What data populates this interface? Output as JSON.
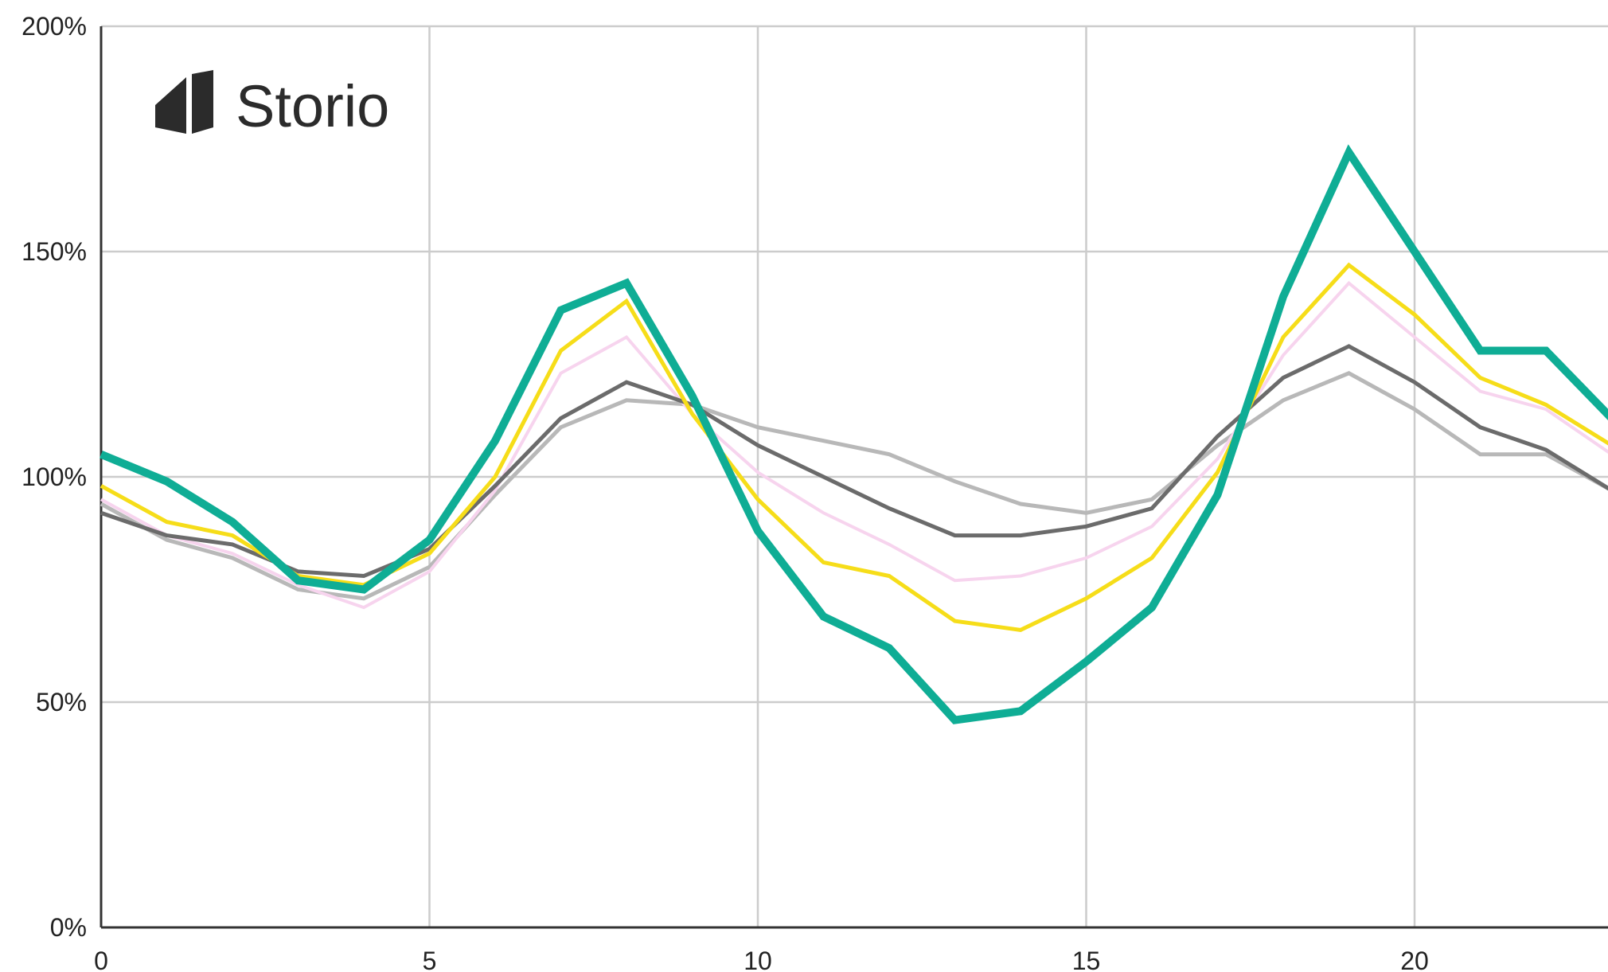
{
  "brand": {
    "name": "Storio"
  },
  "chart_data": {
    "type": "line",
    "xlim": [
      0,
      22.5
    ],
    "ylim": [
      0,
      200
    ],
    "x_ticks": [
      0,
      5,
      10,
      15,
      20
    ],
    "y_ticks": [
      0,
      50,
      100,
      150,
      200
    ],
    "x_tick_labels": [
      "0",
      "5",
      "10",
      "15",
      "20"
    ],
    "y_tick_labels": [
      "0%",
      "50%",
      "100%",
      "150%",
      "200%"
    ],
    "grid": true,
    "legend": "none",
    "x": [
      0,
      1,
      2,
      3,
      4,
      5,
      6,
      7,
      8,
      9,
      10,
      11,
      12,
      13,
      14,
      15,
      16,
      17,
      18,
      19,
      20,
      21,
      22,
      23
    ],
    "series": [
      {
        "color": "#b8b8b8",
        "width": 5,
        "values": [
          94,
          86,
          82,
          75,
          73,
          80,
          96,
          111,
          117,
          116,
          111,
          108,
          105,
          99,
          94,
          92,
          95,
          107,
          117,
          123,
          115,
          105,
          105,
          97
        ]
      },
      {
        "color": "#f7d4ee",
        "width": 4,
        "values": [
          95,
          87,
          83,
          76,
          71,
          79,
          97,
          123,
          131,
          114,
          101,
          92,
          85,
          77,
          78,
          82,
          89,
          104,
          127,
          143,
          131,
          119,
          115,
          105
        ]
      },
      {
        "color": "#6b6b6b",
        "width": 5,
        "values": [
          92,
          87,
          85,
          79,
          78,
          84,
          98,
          113,
          121,
          116,
          107,
          100,
          93,
          87,
          87,
          89,
          93,
          109,
          122,
          129,
          121,
          111,
          106,
          97
        ]
      },
      {
        "color": "#f6dd19",
        "width": 5,
        "values": [
          98,
          90,
          87,
          78,
          76,
          83,
          100,
          128,
          139,
          114,
          95,
          81,
          78,
          68,
          66,
          73,
          82,
          101,
          131,
          147,
          136,
          122,
          116,
          107
        ]
      },
      {
        "color": "#0fad95",
        "width": 10,
        "values": [
          105,
          99,
          90,
          77,
          75,
          86,
          108,
          137,
          143,
          118,
          88,
          69,
          62,
          46,
          48,
          59,
          71,
          96,
          140,
          172,
          150,
          128,
          128,
          113
        ]
      }
    ]
  }
}
